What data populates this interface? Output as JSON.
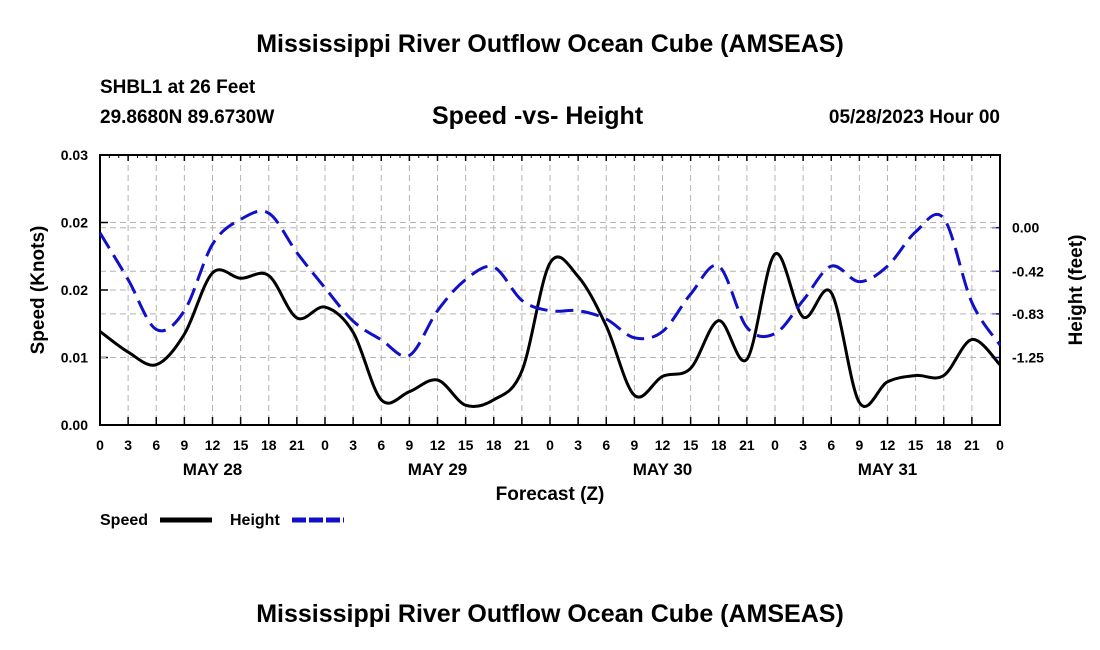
{
  "header": {
    "title": "Mississippi River Outflow Ocean Cube (AMSEAS)",
    "station": "SHBL1 at 26 Feet",
    "location": "29.8680N  89.6730W",
    "subtitle": "Speed -vs- Height",
    "date": "05/28/2023 Hour 00"
  },
  "footer": {
    "title": "Mississippi River Outflow Ocean Cube (AMSEAS)"
  },
  "legend": {
    "speed_label": "Speed",
    "height_label": "Height"
  },
  "colors": {
    "speed": "#000000",
    "height": "#1010c8",
    "grid": "#b4b4b4"
  },
  "chart_data": {
    "type": "line",
    "title": "Speed -vs- Height",
    "xlabel": "Forecast (Z)",
    "ylabel": "Speed (Knots)",
    "y2label": "Height (feet)",
    "xlim": [
      0,
      96
    ],
    "ylim": [
      0,
      0.03
    ],
    "y2lim": [
      -1.9,
      0.7
    ],
    "x_ticks": [
      0,
      3,
      6,
      9,
      12,
      15,
      18,
      21,
      24,
      27,
      30,
      33,
      36,
      39,
      42,
      45,
      48,
      51,
      54,
      57,
      60,
      63,
      66,
      69,
      72,
      75,
      78,
      81,
      84,
      87,
      90,
      93,
      96
    ],
    "x_tick_labels": [
      "0",
      "3",
      "6",
      "9",
      "12",
      "15",
      "18",
      "21",
      "0",
      "3",
      "6",
      "9",
      "12",
      "15",
      "18",
      "21",
      "0",
      "3",
      "6",
      "9",
      "12",
      "15",
      "18",
      "21",
      "0",
      "3",
      "6",
      "9",
      "12",
      "15",
      "18",
      "21",
      "0"
    ],
    "day_labels": [
      {
        "label": "MAY 28",
        "x": 12
      },
      {
        "label": "MAY 29",
        "x": 36
      },
      {
        "label": "MAY 30",
        "x": 60
      },
      {
        "label": "MAY 31",
        "x": 84
      }
    ],
    "y_ticks": [
      0,
      0.0075,
      0.015,
      0.0225,
      0.03
    ],
    "y_tick_labels": [
      "0.00",
      "0.01",
      "0.02",
      "0.02",
      "0.03"
    ],
    "y2_ticks": [
      0.0,
      -0.42,
      -0.83,
      -1.25
    ],
    "y2_tick_labels": [
      "0.00",
      "-0.42",
      "-0.83",
      "-1.25"
    ],
    "series": [
      {
        "name": "Speed",
        "axis": "left",
        "style": "solid",
        "x": [
          0,
          3,
          6,
          9,
          12,
          15,
          18,
          21,
          24,
          27,
          30,
          33,
          36,
          39,
          42,
          45,
          48,
          51,
          54,
          57,
          60,
          63,
          66,
          69,
          72,
          75,
          78,
          81,
          84,
          87,
          90,
          93,
          96
        ],
        "values": [
          0.0104,
          0.0081,
          0.0067,
          0.0101,
          0.0169,
          0.0163,
          0.0166,
          0.0119,
          0.0131,
          0.0103,
          0.0028,
          0.0037,
          0.005,
          0.0022,
          0.0028,
          0.006,
          0.018,
          0.0165,
          0.011,
          0.0033,
          0.0054,
          0.0063,
          0.0116,
          0.0073,
          0.019,
          0.012,
          0.0147,
          0.0025,
          0.0048,
          0.0055,
          0.0055,
          0.0095,
          0.0067
        ]
      },
      {
        "name": "Height",
        "axis": "right",
        "style": "dashed",
        "x": [
          0,
          3,
          6,
          9,
          12,
          15,
          18,
          21,
          24,
          27,
          30,
          33,
          36,
          39,
          42,
          45,
          48,
          51,
          54,
          57,
          60,
          63,
          66,
          69,
          72,
          75,
          78,
          81,
          84,
          87,
          90,
          93,
          96
        ],
        "values": [
          -0.05,
          -0.5,
          -0.98,
          -0.8,
          -0.16,
          0.08,
          0.14,
          -0.24,
          -0.58,
          -0.9,
          -1.08,
          -1.23,
          -0.8,
          -0.5,
          -0.38,
          -0.7,
          -0.8,
          -0.8,
          -0.88,
          -1.06,
          -1.0,
          -0.64,
          -0.37,
          -0.96,
          -1.02,
          -0.7,
          -0.37,
          -0.52,
          -0.37,
          -0.04,
          0.09,
          -0.72,
          -1.13
        ]
      }
    ]
  }
}
